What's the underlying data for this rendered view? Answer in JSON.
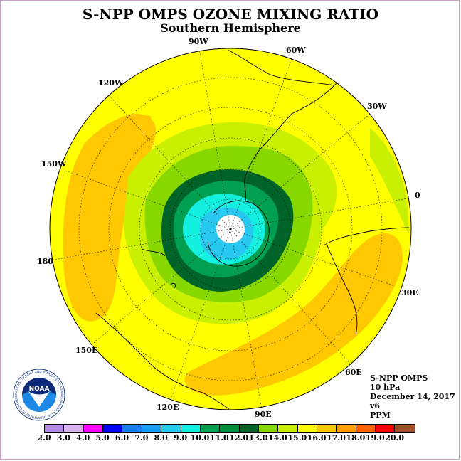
{
  "title": "S-NPP OMPS OZONE MIXING RATIO",
  "subtitle": "Southern Hemisphere",
  "longitude_labels": {
    "w90": "90W",
    "w60": "60W",
    "w30": "30W",
    "w120": "120W",
    "w150": "150W",
    "e0": "0",
    "l180": "180",
    "e30": "30E",
    "e60": "60E",
    "e150": "150E",
    "e120": "120E",
    "e90": "90E"
  },
  "info": {
    "instrument": "S-NPP OMPS",
    "level": "10 hPa",
    "date": "December 14, 2017",
    "version": "v6",
    "units": "PPM"
  },
  "logo": {
    "name": "NOAA",
    "ring_text": "NATIONAL OCEANIC AND ATMOSPHERIC ADMINISTRATION • U.S. DEPARTMENT OF COMMERCE"
  },
  "colorbar": {
    "ticks": [
      "2.0",
      "3.0",
      "4.0",
      "5.0",
      "6.0",
      "7.0",
      "8.0",
      "9.0",
      "10.0",
      "11.0",
      "12.0",
      "13.0",
      "14.0",
      "15.0",
      "16.0",
      "17.0",
      "18.0",
      "19.0",
      "20.0"
    ],
    "colors": [
      "#b58ae8",
      "#d9b2f0",
      "#ff00ff",
      "#0000ff",
      "#1e7cf0",
      "#1ea0f0",
      "#28c8f0",
      "#14f0e0",
      "#00a050",
      "#008a3c",
      "#006428",
      "#88d800",
      "#c8f000",
      "#ffff00",
      "#ffc800",
      "#ffa000",
      "#ff6400",
      "#ff0000",
      "#a05028"
    ]
  },
  "map_colors": {
    "ring_yellow": "#ffff00",
    "orange": "#ffc800",
    "light_green": "#c8f000",
    "green": "#88d800",
    "dark_green": "#006428",
    "mid_green": "#00a050",
    "cyan": "#14f0e0",
    "light_blue": "#28c8f0",
    "pole": "#ffffff"
  }
}
